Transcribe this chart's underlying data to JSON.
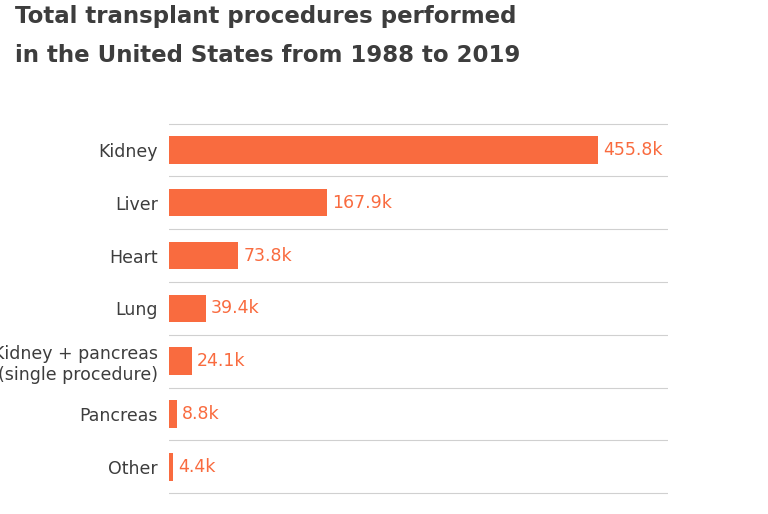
{
  "title_line1": "Total transplant procedures performed",
  "title_line2": "in the United States from 1988 to 2019",
  "categories": [
    "Kidney",
    "Liver",
    "Heart",
    "Lung",
    "Kidney + pancreas\n(single procedure)",
    "Pancreas",
    "Other"
  ],
  "values": [
    455.8,
    167.9,
    73.8,
    39.4,
    24.1,
    8.8,
    4.4
  ],
  "labels": [
    "455.8k",
    "167.9k",
    "73.8k",
    "39.4k",
    "24.1k",
    "8.8k",
    "4.4k"
  ],
  "bar_color": "#F96B3F",
  "label_color": "#F96B3F",
  "title_color": "#3d3d3d",
  "category_color": "#3d3d3d",
  "background_color": "#ffffff",
  "bar_height": 0.52,
  "xlim": [
    0,
    530
  ],
  "title_fontsize": 16.5,
  "category_fontsize": 12.5,
  "label_fontsize": 12.5,
  "divider_color": "#d0d0d0"
}
